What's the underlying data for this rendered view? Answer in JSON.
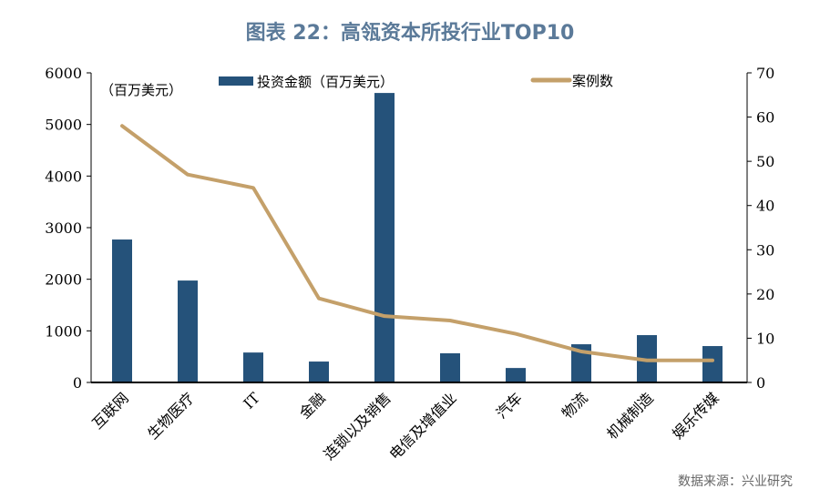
{
  "title": "图表 22：高瓴资本所投行业TOP10",
  "source": "数据来源：兴业研究",
  "chart_data": {
    "type": "bar+line",
    "categories": [
      "互联网",
      "生物医疗",
      "IT",
      "金融",
      "连锁以及销售",
      "电信及增值业",
      "汽车",
      "物流",
      "机械制造",
      "娱乐传媒"
    ],
    "series": [
      {
        "name": "投资金额（百万美元）",
        "type": "bar",
        "axis": "left",
        "color": "#25527a",
        "values": [
          2770,
          1975,
          580,
          405,
          5610,
          565,
          280,
          740,
          917,
          705
        ]
      },
      {
        "name": "案例数",
        "type": "line",
        "axis": "right",
        "color": "#c4a06a",
        "values": [
          58,
          47,
          44,
          19,
          15,
          14,
          11,
          7,
          5,
          5
        ]
      }
    ],
    "left_axis": {
      "unit_label": "（百万美元）",
      "ylim": [
        0,
        6000
      ],
      "ticks": [
        0,
        1000,
        2000,
        3000,
        4000,
        5000,
        6000
      ]
    },
    "right_axis": {
      "ylim": [
        0,
        70
      ],
      "ticks": [
        0,
        10,
        20,
        30,
        40,
        50,
        60,
        70
      ]
    },
    "legend_placement": "top",
    "grid": false
  }
}
